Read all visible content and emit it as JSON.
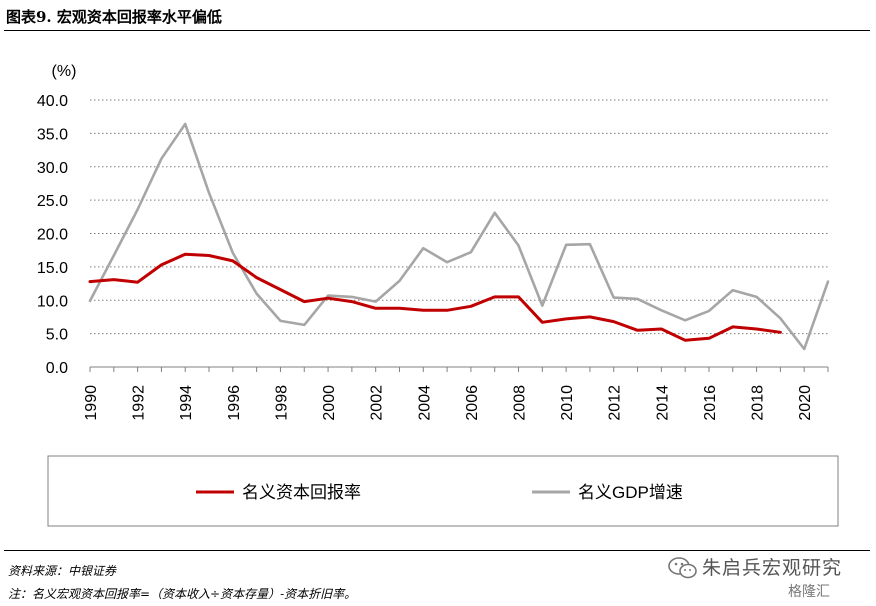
{
  "figure": {
    "title": "图表9. 宏观资本回报率水平偏低",
    "source": "资料来源：中银证券",
    "note": "注：名义宏观资本回报率=（资本收入÷资本存量）-资本折旧率。"
  },
  "watermark": {
    "text": "朱启兵宏观研究",
    "sub": "格隆汇"
  },
  "colors": {
    "series_red": "#C00000",
    "series_gray": "#A6A6A6",
    "grid": "#808080"
  },
  "chart_data": {
    "type": "line",
    "ylabel": "(%)",
    "ylim": [
      0,
      40
    ],
    "yticks": [
      "0.0",
      "5.0",
      "10.0",
      "15.0",
      "20.0",
      "25.0",
      "30.0",
      "35.0",
      "40.0"
    ],
    "xlim": [
      1990,
      2021
    ],
    "xticks": [
      "1990",
      "1992",
      "1994",
      "1996",
      "1998",
      "2000",
      "2002",
      "2004",
      "2006",
      "2008",
      "2010",
      "2012",
      "2014",
      "2016",
      "2018",
      "2020"
    ],
    "grid": "horizontal dotted",
    "legend_position": "bottom",
    "series": [
      {
        "name": "名义资本回报率",
        "color": "#C00000",
        "x": [
          1990,
          1991,
          1992,
          1993,
          1994,
          1995,
          1996,
          1997,
          1998,
          1999,
          2000,
          2001,
          2002,
          2003,
          2004,
          2005,
          2006,
          2007,
          2008,
          2009,
          2010,
          2011,
          2012,
          2013,
          2014,
          2015,
          2016,
          2017,
          2018,
          2019
        ],
        "values": [
          12.8,
          13.1,
          12.7,
          15.3,
          16.9,
          16.7,
          15.9,
          13.4,
          11.6,
          9.8,
          10.3,
          9.8,
          8.8,
          8.8,
          8.5,
          8.5,
          9.1,
          10.5,
          10.5,
          6.7,
          7.2,
          7.5,
          6.8,
          5.5,
          5.7,
          4.0,
          4.3,
          6.0,
          5.7,
          5.2
        ]
      },
      {
        "name": "名义GDP增速",
        "color": "#A6A6A6",
        "x": [
          1990,
          1991,
          1992,
          1993,
          1994,
          1995,
          1996,
          1997,
          1998,
          1999,
          2000,
          2001,
          2002,
          2003,
          2004,
          2005,
          2006,
          2007,
          2008,
          2009,
          2010,
          2011,
          2012,
          2013,
          2014,
          2015,
          2016,
          2017,
          2018,
          2019,
          2020,
          2021
        ],
        "values": [
          9.9,
          16.7,
          23.6,
          31.2,
          36.4,
          26.1,
          17.1,
          11.0,
          6.9,
          6.3,
          10.7,
          10.5,
          9.8,
          12.9,
          17.8,
          15.7,
          17.2,
          23.1,
          18.2,
          9.2,
          18.3,
          18.4,
          10.4,
          10.2,
          8.5,
          7.0,
          8.4,
          11.5,
          10.5,
          7.3,
          2.7,
          12.8
        ]
      }
    ]
  }
}
